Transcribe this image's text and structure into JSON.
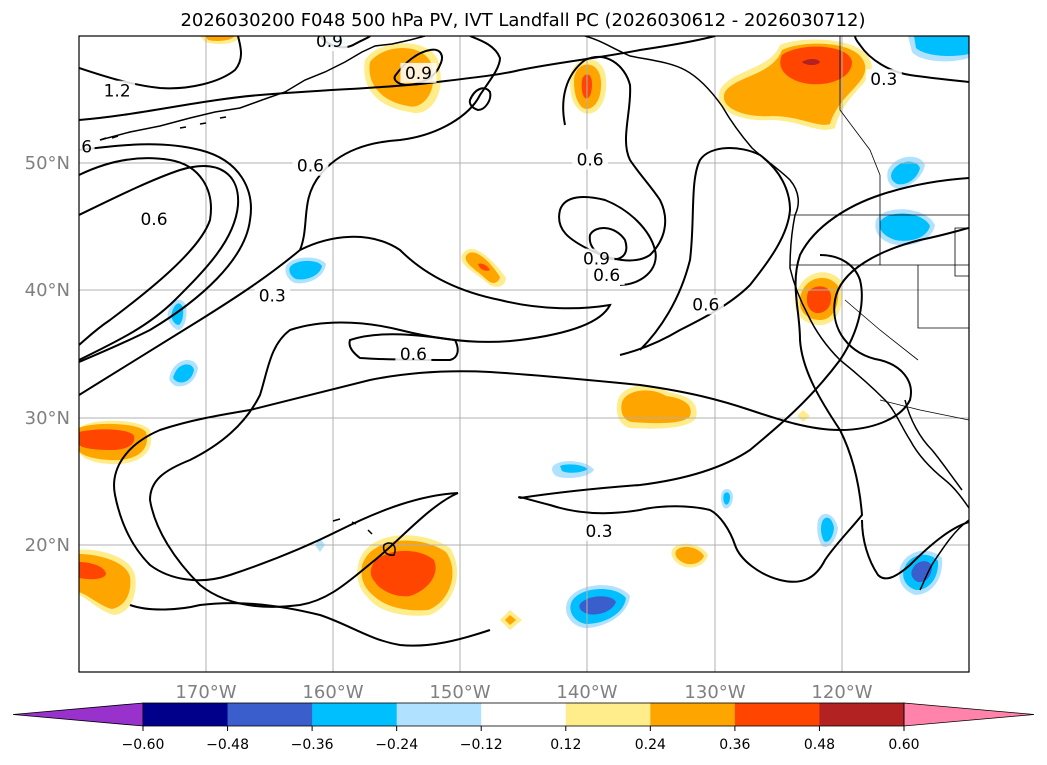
{
  "chart_data": {
    "type": "map-contour",
    "title": "2026030200 F048 500 hPa PV, IVT Landfall PC (2026030612 - 2026030712)",
    "lon_range": [
      -180,
      -110
    ],
    "lat_range": [
      10,
      60
    ],
    "xticks": [
      {
        "value": -170,
        "label": "170°W"
      },
      {
        "value": -160,
        "label": "160°W"
      },
      {
        "value": -150,
        "label": "150°W"
      },
      {
        "value": -140,
        "label": "140°W"
      },
      {
        "value": -130,
        "label": "130°W"
      },
      {
        "value": -120,
        "label": "120°W"
      }
    ],
    "yticks": [
      {
        "value": 20,
        "label": "20°N"
      },
      {
        "value": 30,
        "label": "30°N"
      },
      {
        "value": 40,
        "label": "40°N"
      },
      {
        "value": 50,
        "label": "50°N"
      }
    ],
    "grid": true,
    "colorbar": {
      "levels": [
        -0.6,
        -0.48,
        -0.36,
        -0.24,
        -0.12,
        0.12,
        0.24,
        0.36,
        0.48,
        0.6
      ],
      "labels": [
        "−0.60",
        "−0.48",
        "−0.36",
        "−0.24",
        "−0.12",
        "0.12",
        "0.24",
        "0.36",
        "0.48",
        "0.60"
      ],
      "colors": [
        "#9932cc",
        "#00008b",
        "#3a5fcd",
        "#00bfff",
        "#b0e2ff",
        "#ffffff",
        "#ffec8b",
        "#ffa500",
        "#ff4500",
        "#b22222",
        "#ff83aa"
      ],
      "extend": "both"
    },
    "contour_labels": [
      {
        "text": "1.2",
        "lon": -177,
        "lat": 55.7
      },
      {
        "text": "6",
        "lon": -179.4,
        "lat": 51.3
      },
      {
        "text": "0.6",
        "lon": -161.8,
        "lat": 49.8
      },
      {
        "text": "0.6",
        "lon": -174.1,
        "lat": 45.6
      },
      {
        "text": "0.3",
        "lon": -164.8,
        "lat": 39.6
      },
      {
        "text": "0.6",
        "lon": -153.7,
        "lat": 35.0
      },
      {
        "text": "0.9",
        "lon": -153.3,
        "lat": 57.1
      },
      {
        "text": "0.9",
        "lon": -160.3,
        "lat": 59.6
      },
      {
        "text": "0.6",
        "lon": -139.8,
        "lat": 50.3
      },
      {
        "text": "0.9",
        "lon": -139.3,
        "lat": 42.5
      },
      {
        "text": "0.6",
        "lon": -138.5,
        "lat": 41.2
      },
      {
        "text": "0.6",
        "lon": -130.7,
        "lat": 38.9
      },
      {
        "text": "0.3",
        "lon": -116.7,
        "lat": 56.6
      },
      {
        "text": "0.3",
        "lon": -139.1,
        "lat": 21.1
      }
    ],
    "colors": {
      "pv_contour": "#000000",
      "grid": "#b0b0b0",
      "tick_label": "#808080"
    }
  }
}
